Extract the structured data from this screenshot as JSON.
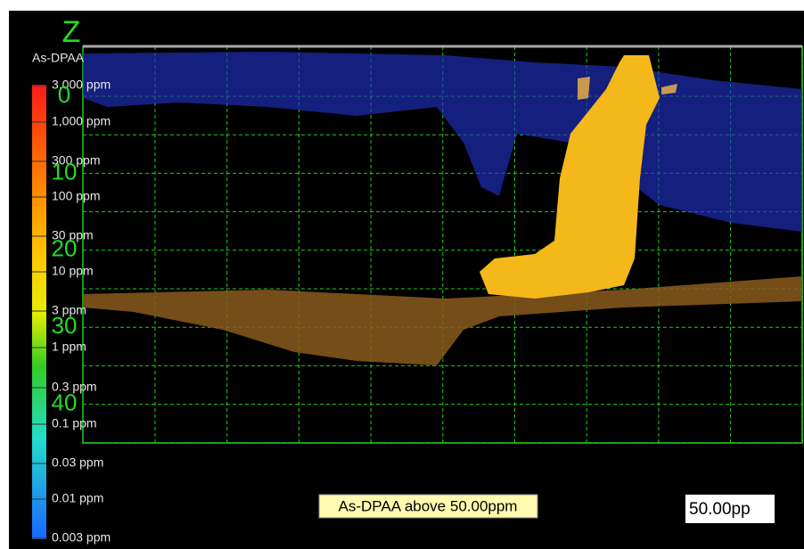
{
  "axis": {
    "title": "Z",
    "labels": [
      "0",
      "10",
      "20",
      "30",
      "40"
    ]
  },
  "legend": {
    "title": "As-DPAA",
    "labels": [
      "3,000 ppm",
      "1,000 ppm",
      "300 ppm",
      "100 ppm",
      "30 ppm",
      "10 ppm",
      "3 ppm",
      "1 ppm",
      "0.3 ppm",
      "0.1 ppm",
      "0.03 ppm",
      "0.01 ppm",
      "0.003 ppm"
    ]
  },
  "caption": "As-DPAA above 50.00ppm",
  "value_box": "50.00pp"
}
